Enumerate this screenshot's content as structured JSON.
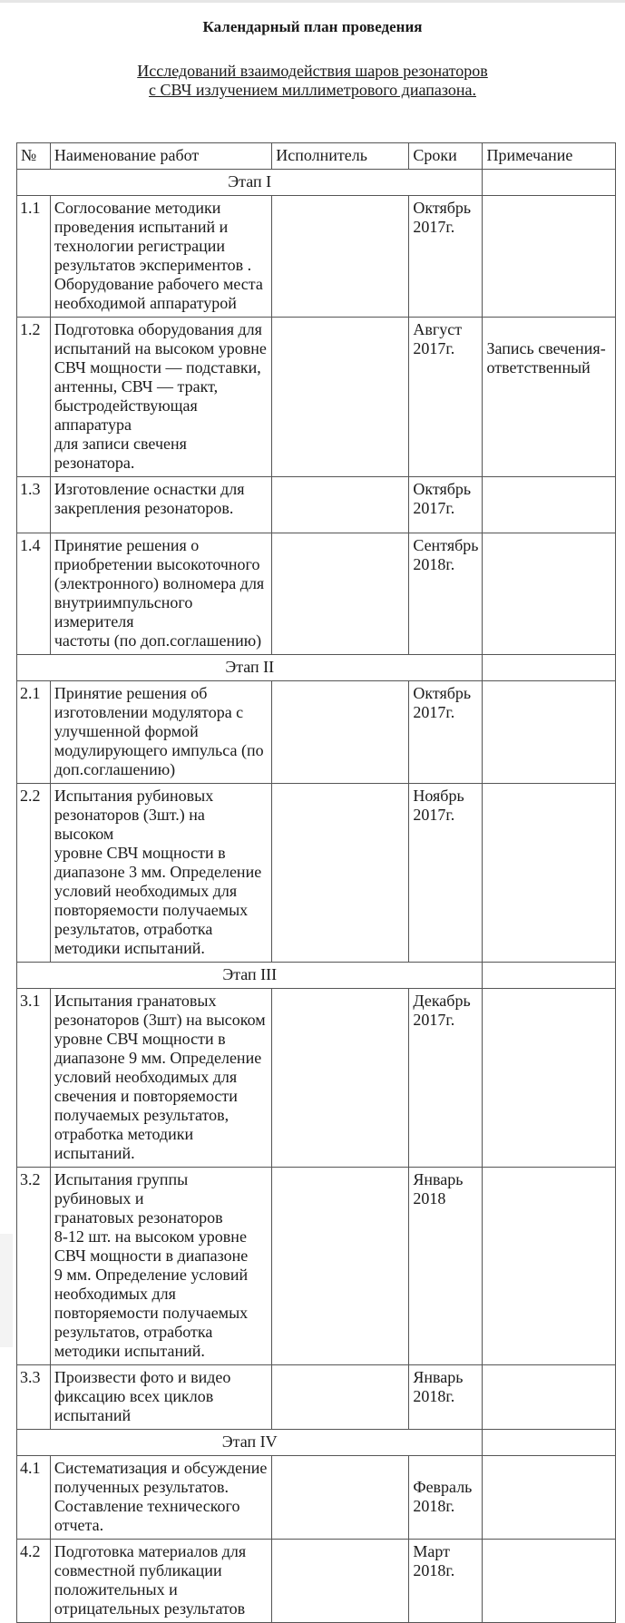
{
  "title": "Календарный план проведения",
  "subtitle": [
    "Исследований взаимодействия  шаров резонаторов",
    "с СВЧ излучением миллиметрового диапазона."
  ],
  "table": {
    "headers": [
      "№",
      "Наименование работ",
      "Исполнитель",
      "Сроки",
      "Примечание"
    ],
    "rows": [
      {
        "stage": "Этап I"
      },
      {
        "num": "1.1",
        "name": "Соглосование методики\nпроведения испытаний и\nтехнологии регистрации\nрезультатов экспериментов .\nОборудование рабочего места\nнеобходимой аппаратурой",
        "executor": "",
        "date": "Октябрь\n2017г.",
        "note": ""
      },
      {
        "num": "1.2",
        "name": "Подготовка оборудования для\nиспытаний на высоком уровне\nСВЧ мощности — подставки,\nантенны, СВЧ — тракт,\nбыстродействующая аппаратура\nдля записи свеченя резонатора.",
        "executor": "",
        "date": "Август\n2017г.",
        "note": "Запись свечения-\nответственный"
      },
      {
        "num": "1.3",
        "name": "Изготовление оснастки для\nзакрепления резонаторов.",
        "executor": "",
        "date": "Октябрь\n2017г.",
        "note": ""
      },
      {
        "num": "1.4",
        "name": "Принятие решения о\nприобретении высокоточного\n(электронного) волномера для\nвнутриимпульсного измерителя\nчастоты (по доп.соглашению)",
        "executor": "",
        "date": "Сентябрь\n2018г.",
        "note": ""
      },
      {
        "stage": "Этап II"
      },
      {
        "num": "2.1",
        "name": "Принятие решения об\nизготовлении модулятора с\nулучшенной формой\nмодулирующего импульса (по\nдоп.соглашению)",
        "executor": "",
        "date": "Октябрь\n2017г.",
        "note": ""
      },
      {
        "num": "2.2",
        "name": "Испытания рубиновых\nрезонаторов (3шт.) на высоком\nуровне СВЧ мощности в\nдиапазоне 3 мм. Определение\nусловий необходимых для\nповторяемости получаемых\nрезультатов, отработка\nметодики испытаний.",
        "executor": "",
        "date": "Ноябрь\n2017г.",
        "note": ""
      },
      {
        "stage": "Этап III"
      },
      {
        "num": "3.1",
        "name": "Испытания гранатовых\nрезонаторов (3шт) на высоком\nуровне СВЧ мощности в\nдиапазоне 9 мм. Определение\nусловий необходимых для\nсвечения и повторяемости\nполучаемых результатов,\nотработка методики испытаний.",
        "executor": "",
        "date": "Декабрь\n2017г.",
        "note": ""
      },
      {
        "num": "3.2",
        "name": "Испытания группы рубиновых и\nгранатовых  резонаторов\n8-12 шт. на высоком уровне\nСВЧ мощности в диапазоне\n9 мм. Определение условий\nнеобходимых для\nповторяемости получаемых\nрезультатов, отработка\nметодики испытаний.",
        "executor": "",
        "date": "Январь\n2018",
        "note": ""
      },
      {
        "num": "3.3",
        "name": "Произвести фото и видео\nфиксацию всех циклов\nиспытаний",
        "executor": "",
        "date": "Январь\n2018г.",
        "note": ""
      },
      {
        "stage": "Этап IV"
      },
      {
        "num": "4.1",
        "name": "Систематизация и обсуждение\nполученных результатов.\nСоставление технического\nотчета.",
        "executor": "",
        "date": "\nФевраль\n2018г.",
        "note": ""
      },
      {
        "num": "4.2",
        "name": "Подготовка материалов для\nсовместной публикации\nположительных и\nотрицательных результатов",
        "executor": "",
        "date": "Март\n2018г.",
        "note": ""
      }
    ]
  }
}
